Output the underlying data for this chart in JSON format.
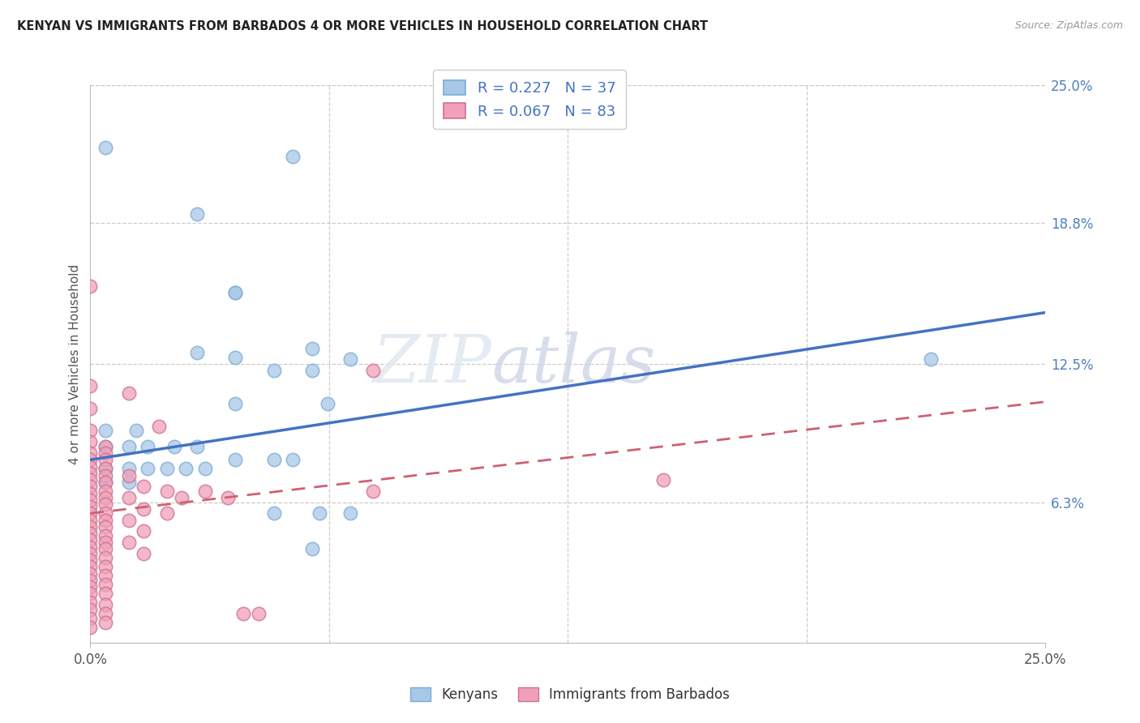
{
  "title": "KENYAN VS IMMIGRANTS FROM BARBADOS 4 OR MORE VEHICLES IN HOUSEHOLD CORRELATION CHART",
  "source": "Source: ZipAtlas.com",
  "ylabel": "4 or more Vehicles in Household",
  "xlim": [
    0.0,
    0.25
  ],
  "ylim": [
    0.0,
    0.25
  ],
  "xtick_vals": [
    0.0,
    0.25
  ],
  "xtick_labels": [
    "0.0%",
    "25.0%"
  ],
  "ytick_positions": [
    0.063,
    0.125,
    0.188,
    0.25
  ],
  "ytick_labels": [
    "6.3%",
    "12.5%",
    "18.8%",
    "25.0%"
  ],
  "grid_color": "#cccccc",
  "background_color": "#ffffff",
  "kenyan_color": "#a8c8e8",
  "barbados_color": "#f0a0b8",
  "kenyan_line_color": "#4472c4",
  "barbados_line_color": "#e8808080",
  "kenyan_line": {
    "x0": 0.0,
    "y0": 0.082,
    "x1": 0.25,
    "y1": 0.148
  },
  "barbados_line": {
    "x0": 0.0,
    "y0": 0.058,
    "x1": 0.25,
    "y1": 0.108
  },
  "legend_text1": "R = 0.227   N = 37",
  "legend_text2": "R = 0.067   N = 83",
  "watermark1": "ZIP",
  "watermark2": "atlas",
  "kenyan_scatter": [
    [
      0.004,
      0.222
    ],
    [
      0.028,
      0.192
    ],
    [
      0.053,
      0.218
    ],
    [
      0.038,
      0.157
    ],
    [
      0.058,
      0.132
    ],
    [
      0.068,
      0.127
    ],
    [
      0.038,
      0.107
    ],
    [
      0.062,
      0.107
    ],
    [
      0.038,
      0.157
    ],
    [
      0.028,
      0.13
    ],
    [
      0.038,
      0.128
    ],
    [
      0.048,
      0.122
    ],
    [
      0.058,
      0.122
    ],
    [
      0.004,
      0.095
    ],
    [
      0.012,
      0.095
    ],
    [
      0.004,
      0.088
    ],
    [
      0.01,
      0.088
    ],
    [
      0.015,
      0.088
    ],
    [
      0.022,
      0.088
    ],
    [
      0.028,
      0.088
    ],
    [
      0.038,
      0.082
    ],
    [
      0.048,
      0.082
    ],
    [
      0.053,
      0.082
    ],
    [
      0.004,
      0.078
    ],
    [
      0.01,
      0.078
    ],
    [
      0.015,
      0.078
    ],
    [
      0.02,
      0.078
    ],
    [
      0.025,
      0.078
    ],
    [
      0.03,
      0.078
    ],
    [
      0.004,
      0.072
    ],
    [
      0.01,
      0.072
    ],
    [
      0.048,
      0.058
    ],
    [
      0.06,
      0.058
    ],
    [
      0.068,
      0.058
    ],
    [
      0.058,
      0.042
    ],
    [
      0.22,
      0.127
    ]
  ],
  "barbados_scatter": [
    [
      0.0,
      0.16
    ],
    [
      0.0,
      0.115
    ],
    [
      0.0,
      0.105
    ],
    [
      0.0,
      0.095
    ],
    [
      0.0,
      0.09
    ],
    [
      0.0,
      0.085
    ],
    [
      0.0,
      0.082
    ],
    [
      0.0,
      0.079
    ],
    [
      0.0,
      0.076
    ],
    [
      0.0,
      0.073
    ],
    [
      0.0,
      0.07
    ],
    [
      0.0,
      0.067
    ],
    [
      0.0,
      0.064
    ],
    [
      0.0,
      0.061
    ],
    [
      0.0,
      0.058
    ],
    [
      0.0,
      0.055
    ],
    [
      0.0,
      0.052
    ],
    [
      0.0,
      0.049
    ],
    [
      0.0,
      0.046
    ],
    [
      0.0,
      0.043
    ],
    [
      0.0,
      0.04
    ],
    [
      0.0,
      0.037
    ],
    [
      0.0,
      0.034
    ],
    [
      0.0,
      0.031
    ],
    [
      0.0,
      0.028
    ],
    [
      0.0,
      0.025
    ],
    [
      0.0,
      0.022
    ],
    [
      0.0,
      0.018
    ],
    [
      0.0,
      0.015
    ],
    [
      0.0,
      0.011
    ],
    [
      0.0,
      0.007
    ],
    [
      0.004,
      0.088
    ],
    [
      0.004,
      0.085
    ],
    [
      0.004,
      0.082
    ],
    [
      0.004,
      0.078
    ],
    [
      0.004,
      0.075
    ],
    [
      0.004,
      0.072
    ],
    [
      0.004,
      0.068
    ],
    [
      0.004,
      0.065
    ],
    [
      0.004,
      0.062
    ],
    [
      0.004,
      0.058
    ],
    [
      0.004,
      0.055
    ],
    [
      0.004,
      0.052
    ],
    [
      0.004,
      0.048
    ],
    [
      0.004,
      0.045
    ],
    [
      0.004,
      0.042
    ],
    [
      0.004,
      0.038
    ],
    [
      0.004,
      0.034
    ],
    [
      0.004,
      0.03
    ],
    [
      0.004,
      0.026
    ],
    [
      0.004,
      0.022
    ],
    [
      0.004,
      0.017
    ],
    [
      0.004,
      0.013
    ],
    [
      0.004,
      0.009
    ],
    [
      0.01,
      0.075
    ],
    [
      0.01,
      0.065
    ],
    [
      0.01,
      0.055
    ],
    [
      0.01,
      0.045
    ],
    [
      0.014,
      0.07
    ],
    [
      0.014,
      0.06
    ],
    [
      0.014,
      0.05
    ],
    [
      0.014,
      0.04
    ],
    [
      0.02,
      0.068
    ],
    [
      0.02,
      0.058
    ],
    [
      0.024,
      0.065
    ],
    [
      0.03,
      0.068
    ],
    [
      0.036,
      0.065
    ],
    [
      0.04,
      0.013
    ],
    [
      0.044,
      0.013
    ],
    [
      0.074,
      0.122
    ],
    [
      0.01,
      0.112
    ],
    [
      0.018,
      0.097
    ],
    [
      0.074,
      0.068
    ],
    [
      0.15,
      0.073
    ]
  ]
}
